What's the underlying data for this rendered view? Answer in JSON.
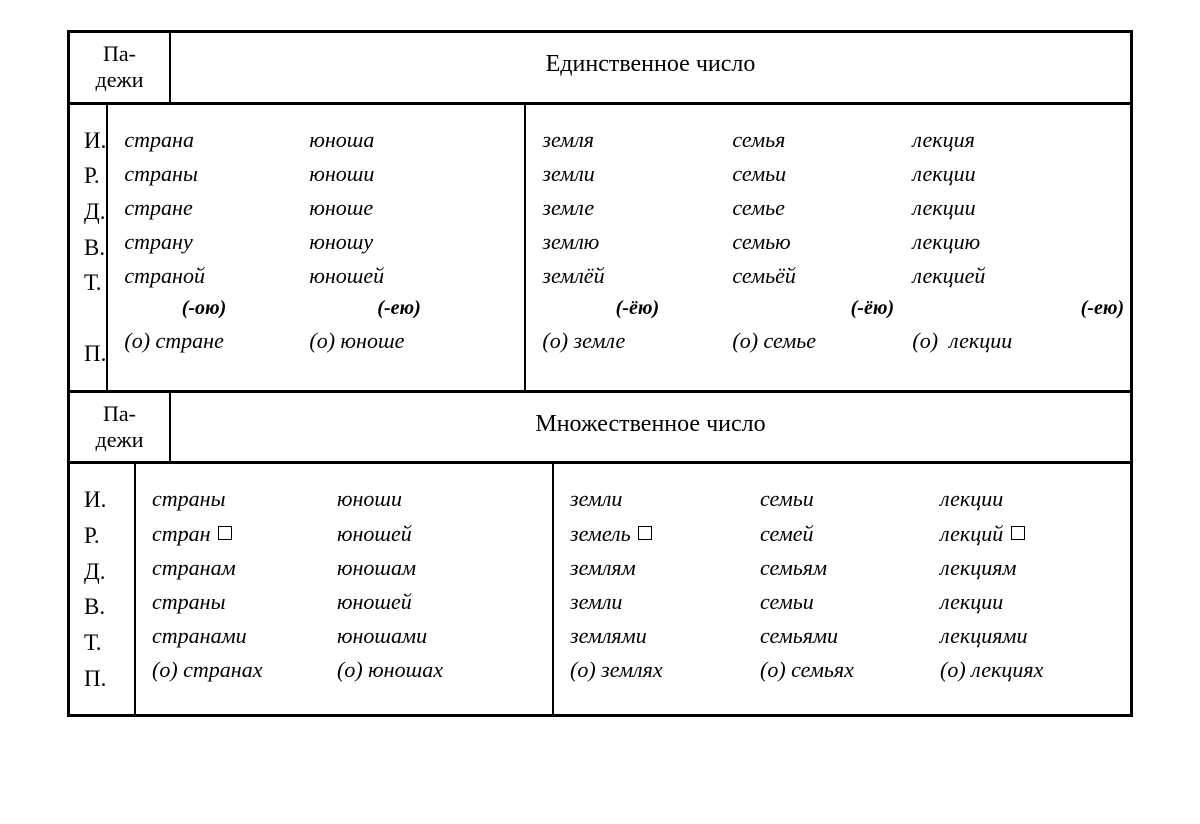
{
  "headers": {
    "cases_label_line1": "Па-",
    "cases_label_line2": "дежи",
    "singular_title": "Единственное число",
    "plural_title": "Множественное число"
  },
  "cases": {
    "nom": "И.",
    "gen": "Р.",
    "dat": "Д.",
    "acc": "В.",
    "ins": "Т.",
    "pre": "П."
  },
  "singular": {
    "left": {
      "rows": [
        {
          "c1": "страна",
          "c2": "юноша"
        },
        {
          "c1": "страны",
          "c2": "юноши"
        },
        {
          "c1": "стране",
          "c2": "юноше"
        },
        {
          "c1": "страну",
          "c2": "юношу"
        },
        {
          "c1": "страной",
          "c2": "юношей"
        }
      ],
      "suffix": {
        "c1": "(-ою)",
        "c2": "(-ею)"
      },
      "pre": {
        "c1_pref": "(о)",
        "c1": "стране",
        "c2_pref": "(о)",
        "c2": "юноше"
      }
    },
    "right": {
      "rows": [
        {
          "c1": "земля",
          "c2": "семья",
          "c3": "лекция"
        },
        {
          "c1": "земли",
          "c2": "семьи",
          "c3": "лекции"
        },
        {
          "c1": "земле",
          "c2": "семье",
          "c3": "лекции"
        },
        {
          "c1": "землю",
          "c2": "семью",
          "c3": "лекцию"
        },
        {
          "c1": "землёй",
          "c2": "семьёй",
          "c3": "лекцией"
        }
      ],
      "suffix": {
        "c1": "(-ёю)",
        "c2": "(-ёю)",
        "c3": "(-ею)"
      },
      "pre": {
        "c1_pref": "(о)",
        "c1": "земле",
        "c2_pref": "(о)",
        "c2": "семье",
        "c3_pref": "(о)",
        "c3": "лекции"
      }
    }
  },
  "plural": {
    "left": {
      "rows": [
        {
          "c1": "страны",
          "c2": "юноши"
        },
        {
          "c1": "стран",
          "c1_zero": true,
          "c2": "юношей"
        },
        {
          "c1": "странам",
          "c2": "юношам"
        },
        {
          "c1": "страны",
          "c2": "юношей"
        },
        {
          "c1": "странами",
          "c2": "юношами"
        }
      ],
      "pre": {
        "c1_pref": "(о)",
        "c1": "странах",
        "c2_pref": "(о)",
        "c2": "юношах"
      }
    },
    "right": {
      "rows": [
        {
          "c1": "земли",
          "c2": "семьи",
          "c3": "лекции"
        },
        {
          "c1": "земель",
          "c1_zero": true,
          "c2": "семей",
          "c3": "лекций",
          "c3_zero": true
        },
        {
          "c1": "землям",
          "c2": "семьям",
          "c3": "лекциям"
        },
        {
          "c1": "земли",
          "c2": "семьи",
          "c3": "лекции"
        },
        {
          "c1": "землями",
          "c2": "семьями",
          "c3": "лекциями"
        }
      ],
      "pre": {
        "c1_pref": "(о)",
        "c1": "землях",
        "c2_pref": "(о)",
        "c2": "семьях",
        "c3_pref": "(о)",
        "c3": "лекциях"
      }
    }
  }
}
